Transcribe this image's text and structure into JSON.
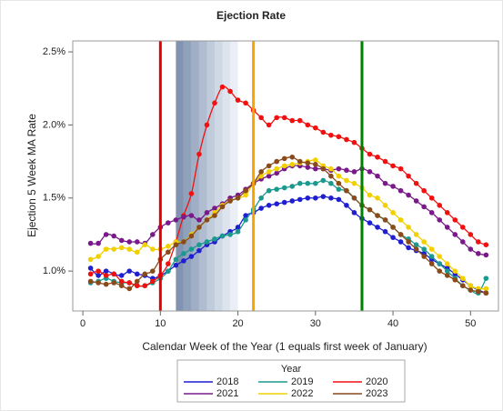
{
  "chart_data": {
    "type": "line",
    "title": "Ejection Rate",
    "x_label": "Calendar Week of the Year (1 equals first week of January)",
    "y_label": "Ejection 5 Week MA Rate",
    "x": [
      1,
      2,
      3,
      4,
      5,
      6,
      7,
      8,
      9,
      10,
      11,
      12,
      13,
      14,
      15,
      16,
      17,
      18,
      19,
      20,
      21,
      22,
      23,
      24,
      25,
      26,
      27,
      28,
      29,
      30,
      31,
      32,
      33,
      34,
      35,
      36,
      37,
      38,
      39,
      40,
      41,
      42,
      43,
      44,
      45,
      46,
      47,
      48,
      49,
      50,
      51,
      52
    ],
    "series": [
      {
        "name": "2018",
        "color": "#1f1fd0",
        "values": [
          1.02,
          0.97,
          1.0,
          0.98,
          0.97,
          1.0,
          0.98,
          0.97,
          0.95,
          0.97,
          1.0,
          1.04,
          1.07,
          1.1,
          1.14,
          1.18,
          1.2,
          1.24,
          1.27,
          1.3,
          1.38,
          1.4,
          1.43,
          1.45,
          1.46,
          1.47,
          1.48,
          1.49,
          1.5,
          1.5,
          1.51,
          1.5,
          1.49,
          1.45,
          1.4,
          1.36,
          1.33,
          1.3,
          1.27,
          1.23,
          1.2,
          1.16,
          1.14,
          1.12,
          1.08,
          1.05,
          1.02,
          0.98,
          0.94,
          0.9,
          0.87,
          0.85
        ]
      },
      {
        "name": "2019",
        "color": "#1a9a8f",
        "values": [
          0.92,
          0.93,
          0.95,
          0.93,
          0.92,
          0.92,
          0.9,
          0.9,
          0.92,
          0.95,
          1.0,
          1.08,
          1.12,
          1.15,
          1.18,
          1.2,
          1.22,
          1.24,
          1.25,
          1.27,
          1.35,
          1.42,
          1.5,
          1.55,
          1.56,
          1.57,
          1.58,
          1.6,
          1.6,
          1.6,
          1.62,
          1.6,
          1.56,
          1.55,
          1.5,
          1.45,
          1.42,
          1.38,
          1.35,
          1.3,
          1.25,
          1.22,
          1.18,
          1.15,
          1.1,
          1.05,
          1.0,
          0.95,
          0.9,
          0.87,
          0.85,
          0.95
        ]
      },
      {
        "name": "2020",
        "color": "#f01010",
        "values": [
          0.98,
          1.0,
          0.97,
          0.98,
          0.93,
          0.92,
          0.9,
          0.9,
          0.93,
          0.97,
          1.05,
          1.2,
          1.38,
          1.53,
          1.8,
          2.0,
          2.15,
          2.26,
          2.23,
          2.17,
          2.15,
          2.1,
          2.05,
          2.0,
          2.05,
          2.05,
          2.03,
          2.03,
          2.0,
          1.98,
          1.95,
          1.93,
          1.92,
          1.9,
          1.88,
          1.84,
          1.8,
          1.78,
          1.75,
          1.72,
          1.7,
          1.65,
          1.6,
          1.55,
          1.5,
          1.45,
          1.4,
          1.35,
          1.3,
          1.25,
          1.2,
          1.18
        ]
      },
      {
        "name": "2021",
        "color": "#7a1a8a",
        "values": [
          1.19,
          1.19,
          1.25,
          1.24,
          1.21,
          1.2,
          1.2,
          1.19,
          1.25,
          1.3,
          1.33,
          1.35,
          1.37,
          1.38,
          1.35,
          1.4,
          1.43,
          1.46,
          1.5,
          1.52,
          1.56,
          1.6,
          1.63,
          1.65,
          1.67,
          1.7,
          1.72,
          1.72,
          1.71,
          1.7,
          1.7,
          1.69,
          1.7,
          1.69,
          1.68,
          1.7,
          1.68,
          1.65,
          1.6,
          1.58,
          1.55,
          1.52,
          1.48,
          1.44,
          1.4,
          1.35,
          1.3,
          1.25,
          1.2,
          1.15,
          1.12,
          1.11
        ]
      },
      {
        "name": "2022",
        "color": "#f2d000",
        "values": [
          1.08,
          1.1,
          1.15,
          1.15,
          1.16,
          1.15,
          1.13,
          1.18,
          1.15,
          1.15,
          1.17,
          1.2,
          1.2,
          1.25,
          1.3,
          1.35,
          1.4,
          1.45,
          1.48,
          1.5,
          1.52,
          1.6,
          1.65,
          1.68,
          1.7,
          1.72,
          1.73,
          1.74,
          1.75,
          1.76,
          1.72,
          1.7,
          1.65,
          1.62,
          1.6,
          1.57,
          1.52,
          1.5,
          1.45,
          1.4,
          1.35,
          1.3,
          1.25,
          1.2,
          1.15,
          1.1,
          1.05,
          1.0,
          0.95,
          0.9,
          0.88,
          0.88
        ]
      },
      {
        "name": "2023",
        "color": "#8a4a1a",
        "values": [
          0.93,
          0.92,
          0.91,
          0.92,
          0.9,
          0.88,
          0.93,
          0.98,
          1.0,
          1.08,
          1.13,
          1.18,
          1.2,
          1.24,
          1.3,
          1.35,
          1.38,
          1.44,
          1.48,
          1.5,
          1.55,
          1.6,
          1.68,
          1.72,
          1.75,
          1.77,
          1.78,
          1.75,
          1.74,
          1.73,
          1.7,
          1.65,
          1.6,
          1.55,
          1.5,
          1.45,
          1.42,
          1.38,
          1.35,
          1.3,
          1.25,
          1.2,
          1.15,
          1.1,
          1.05,
          1.0,
          0.97,
          0.94,
          0.9,
          0.87,
          0.86,
          0.85
        ]
      }
    ],
    "xlim": [
      -1.3,
      53.6
    ],
    "xticks": [
      0,
      10,
      20,
      30,
      40,
      50
    ],
    "ylim": [
      0.727,
      2.575
    ],
    "yticks": [
      {
        "value": 1.0,
        "label": "1.0%"
      },
      {
        "value": 1.5,
        "label": "1.5%"
      },
      {
        "value": 2.0,
        "label": "2.0%"
      },
      {
        "value": 2.5,
        "label": "2.5%"
      }
    ],
    "reference_lines": [
      {
        "x": 10,
        "color": "#e00000"
      },
      {
        "x": 22,
        "color": "#f5a500"
      },
      {
        "x": 36,
        "color": "#008000"
      }
    ],
    "shaded_bands": [
      {
        "x0": 12,
        "x1": 13,
        "color": "#8193b0"
      },
      {
        "x0": 13,
        "x1": 14,
        "color": "#90a1bb"
      },
      {
        "x0": 14,
        "x1": 15,
        "color": "#a0afc6"
      },
      {
        "x0": 15,
        "x1": 16,
        "color": "#b0bdd1"
      },
      {
        "x0": 16,
        "x1": 17,
        "color": "#c0cbdb"
      },
      {
        "x0": 17,
        "x1": 18,
        "color": "#cfd8e5"
      },
      {
        "x0": 18,
        "x1": 19,
        "color": "#dde4ee"
      },
      {
        "x0": 19,
        "x1": 20,
        "color": "#eaeff5"
      }
    ],
    "legend_title": "Year",
    "legend": "bottom"
  }
}
